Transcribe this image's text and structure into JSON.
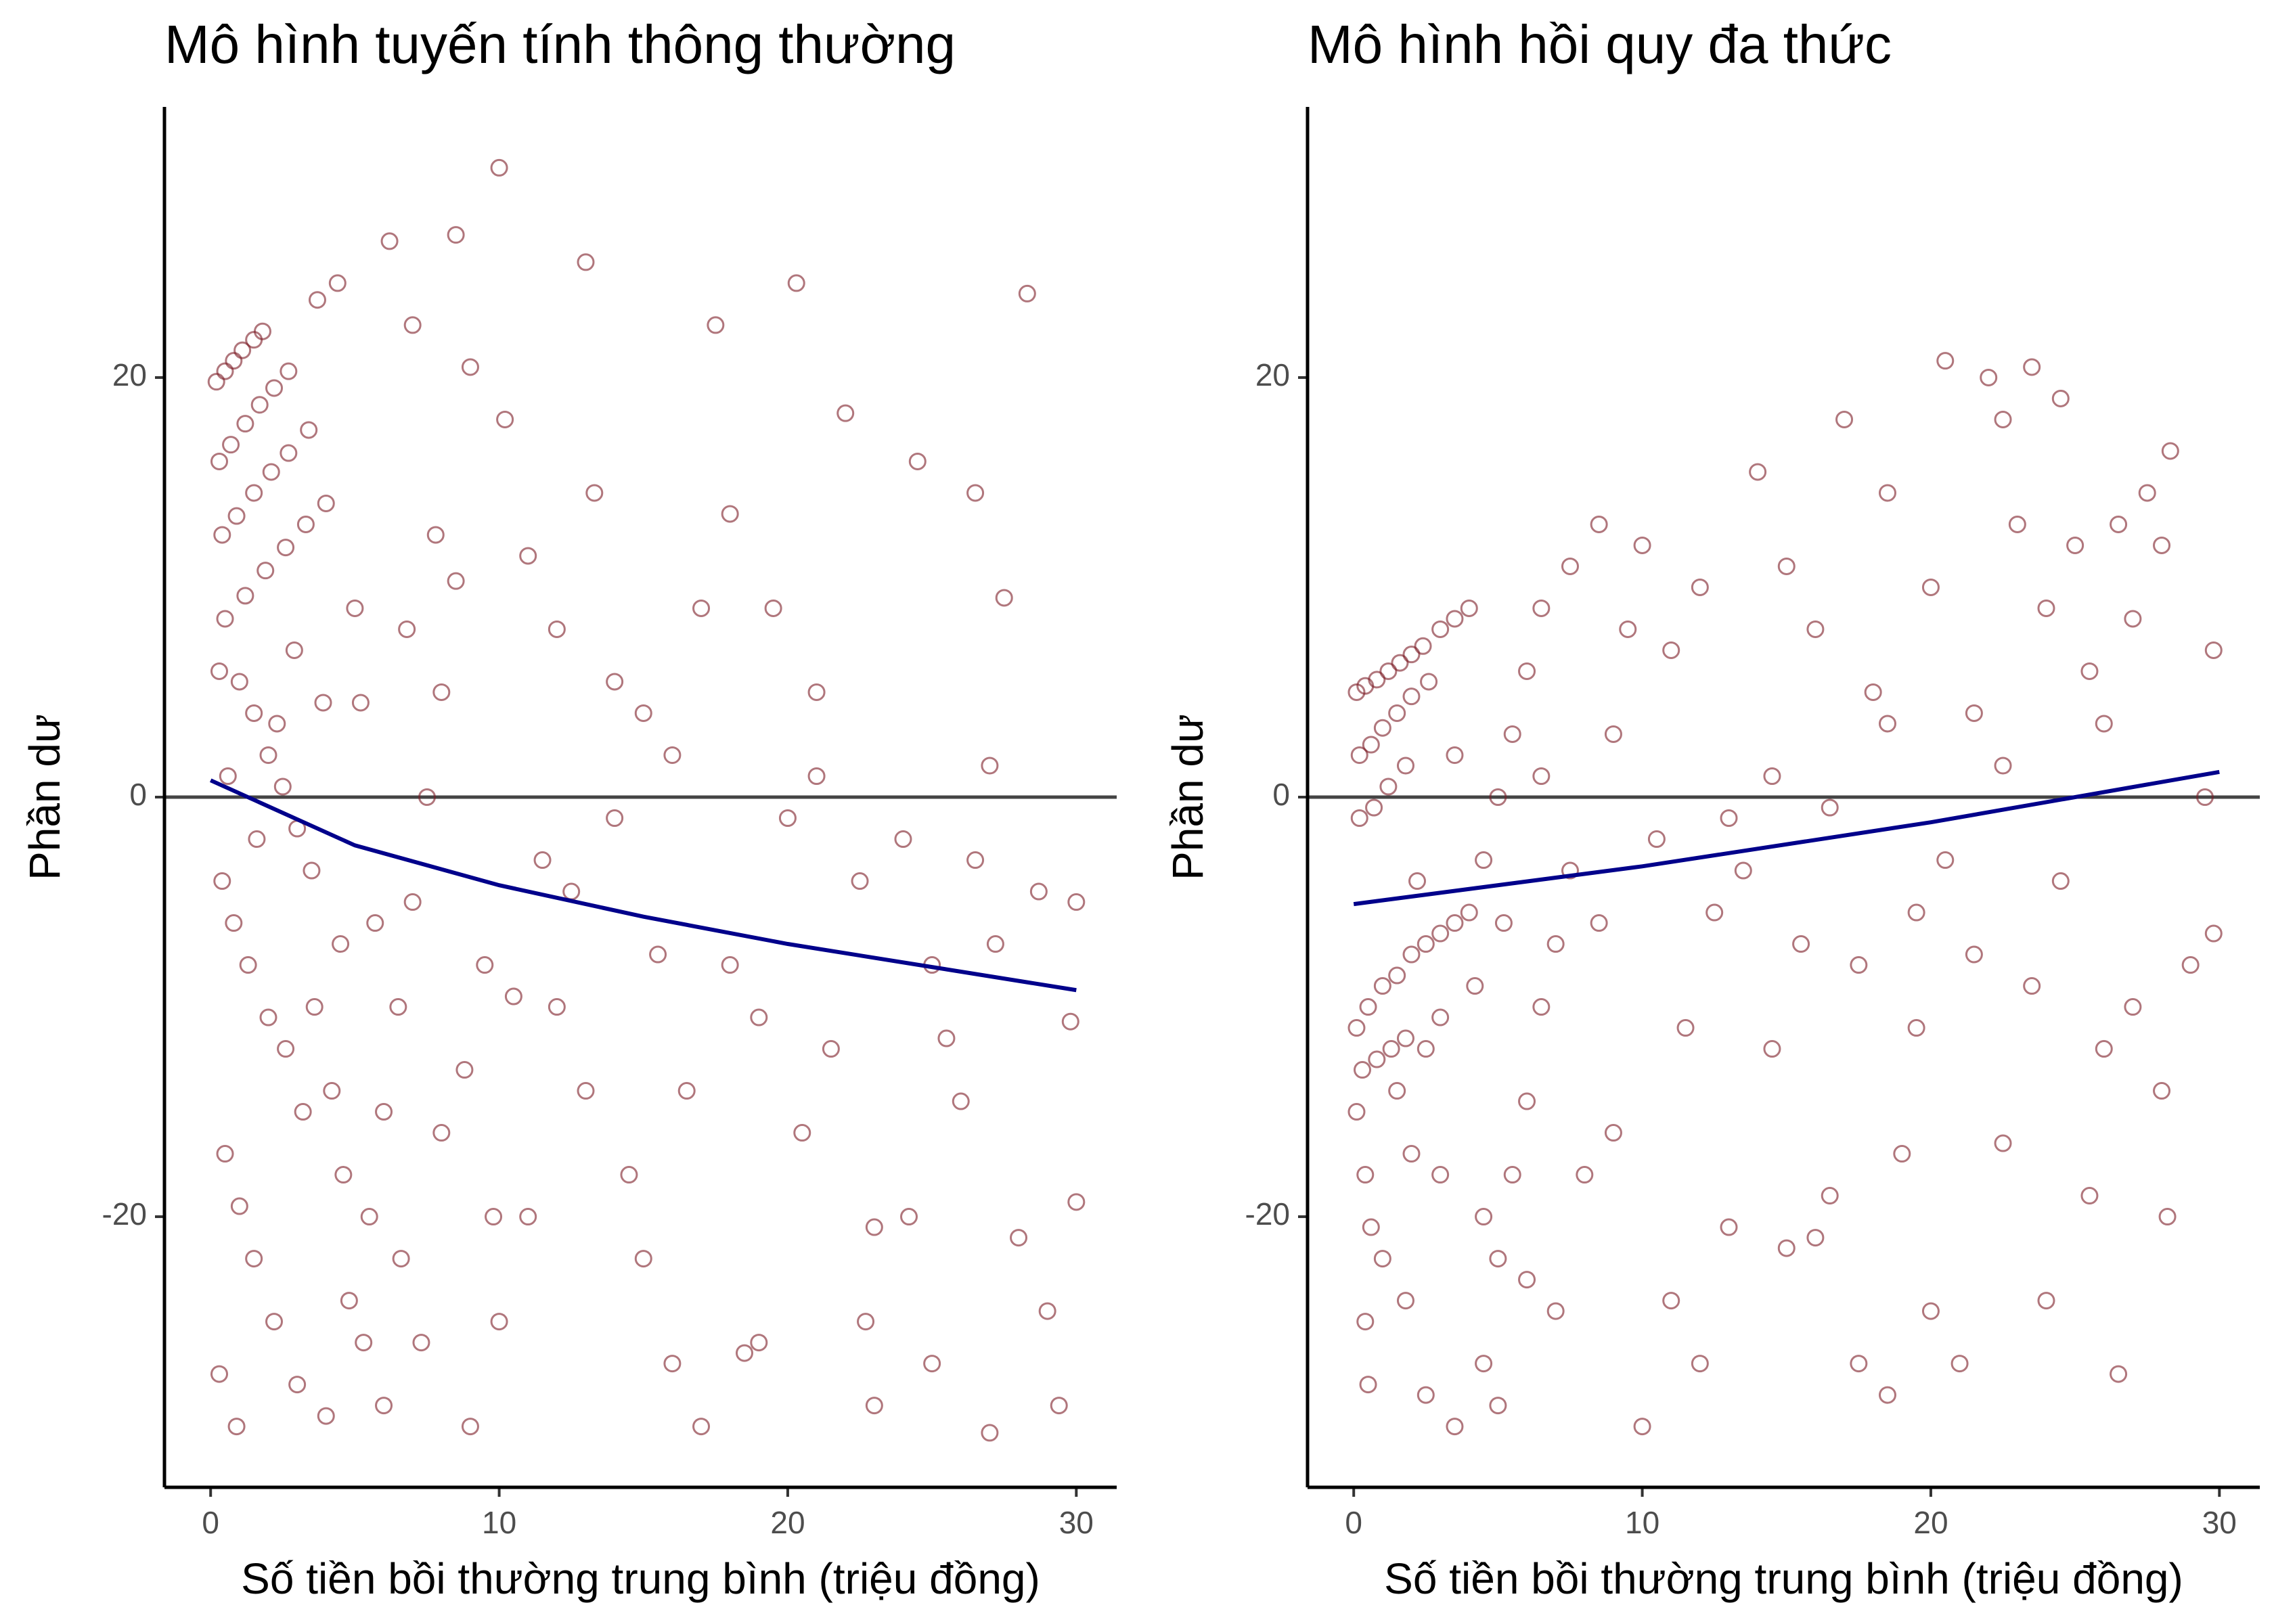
{
  "chart_data": [
    {
      "type": "scatter",
      "title": "Mô hình tuyến tính thông thường",
      "x_label": "Số tiền bồi thường trung bình (triệu đồng)",
      "y_label": "Phần dư",
      "xlim": [
        -1.6,
        31.4
      ],
      "ylim": [
        -32.9,
        32.9
      ],
      "xticks": [
        0,
        10,
        20,
        30
      ],
      "yticks": [
        -20,
        0,
        20
      ],
      "hline": 0,
      "color": "#7b1a25",
      "x": [
        0.2,
        0.5,
        0.8,
        1.1,
        1.5,
        1.8,
        0.3,
        0.7,
        1.2,
        1.7,
        2.2,
        2.7,
        0.4,
        0.9,
        1.5,
        2.1,
        2.7,
        3.4,
        0.5,
        1.2,
        1.9,
        2.6,
        3.3,
        4,
        4.4,
        3.7,
        0.3,
        1,
        1.5,
        2,
        2.5,
        3,
        0.4,
        0.8,
        1.3,
        2,
        2.6,
        3.2,
        0.5,
        1,
        1.5,
        2.2,
        3,
        4,
        0.3,
        0.9,
        4.8,
        5.5,
        6,
        6.5,
        7,
        7.5,
        8,
        6.2,
        7,
        8.5,
        10,
        9,
        10.2,
        11,
        12,
        13,
        13.3,
        14,
        11.5,
        12,
        13,
        14.5,
        15,
        16,
        17,
        9,
        10,
        11,
        8,
        9.5,
        15.5,
        16,
        17,
        17.5,
        18,
        18.5,
        19,
        20,
        20.3,
        21,
        22,
        22.5,
        23,
        24,
        24.5,
        25,
        26,
        26.5,
        27,
        27.2,
        28,
        28.3,
        28.7,
        29.4,
        29.8,
        30,
        30,
        27,
        25,
        21.5,
        19,
        23,
        6,
        3.5,
        4.5,
        5.2,
        5.7,
        6.8,
        7.8,
        8.5,
        5,
        3.9,
        2.3,
        1.6,
        0.6,
        2.9,
        3.6,
        4.2,
        4.6,
        5.3,
        6.6,
        7.3,
        8.8,
        9.8,
        10.5,
        12.5,
        14,
        15,
        16.5,
        18,
        19.5,
        20.5,
        21,
        22.7,
        24.2,
        25.5,
        26.5,
        27.5,
        29
      ],
      "values": [
        19.8,
        20.3,
        20.8,
        21.3,
        21.8,
        22.2,
        16,
        16.8,
        17.8,
        18.7,
        19.5,
        20.3,
        12.5,
        13.4,
        14.5,
        15.5,
        16.4,
        17.5,
        8.5,
        9.6,
        10.8,
        11.9,
        13,
        14,
        24.5,
        23.7,
        6,
        5.5,
        4,
        2,
        0.5,
        -1.5,
        -4,
        -6,
        -8,
        -10.5,
        -12,
        -15,
        -17,
        -19.5,
        -22,
        -25,
        -28,
        -29.5,
        -27.5,
        -30,
        -24,
        -20,
        -15,
        -10,
        -5,
        0,
        5,
        26.5,
        22.5,
        26.8,
        30,
        20.5,
        18,
        11.5,
        8,
        25.5,
        14.5,
        5.5,
        -3,
        -10,
        -14,
        -18,
        -22,
        -27,
        -30,
        -30,
        -25,
        -20,
        -16,
        -8,
        -7.5,
        2,
        9,
        22.5,
        -8,
        -26.5,
        -10.5,
        -1,
        24.5,
        5,
        18.3,
        -4,
        -20.5,
        -2,
        16,
        -8,
        -14.5,
        14.5,
        1.5,
        -7,
        -21,
        24,
        -4.5,
        -29,
        -10.7,
        -19.3,
        -5,
        -30.3,
        -27,
        -12,
        -26,
        -29,
        -29,
        -3.5,
        -7,
        4.5,
        -6,
        8,
        12.5,
        10.3,
        9,
        4.5,
        3.5,
        -2,
        1,
        7,
        -10,
        -14,
        -18,
        -26,
        -22,
        -26,
        -13,
        -20,
        -9.5,
        -4.5,
        -1,
        4,
        -14,
        13.5,
        9,
        -16,
        1,
        -25,
        -20,
        -11.5,
        -3,
        9.5,
        -24.5
      ],
      "trend": {
        "color": "#00008b",
        "x": [
          0,
          5,
          10,
          15,
          20,
          25,
          30
        ],
        "values": [
          0.8,
          -2.3,
          -4.2,
          -5.7,
          -7,
          -8.1,
          -9.2
        ]
      }
    },
    {
      "type": "scatter",
      "title": "Mô hình hồi quy đa thức",
      "x_label": "Số tiền bồi thường trung bình (triệu đồng)",
      "y_label": "Phần dư",
      "xlim": [
        -1.6,
        31.4
      ],
      "ylim": [
        -32.9,
        32.9
      ],
      "xticks": [
        0,
        10,
        20,
        30
      ],
      "yticks": [
        -20,
        0,
        20
      ],
      "hline": 0,
      "color": "#7b1a25",
      "x": [
        0.1,
        0.4,
        0.8,
        1.2,
        1.6,
        2,
        2.4,
        0.2,
        0.6,
        1,
        1.5,
        2,
        2.6,
        0.2,
        0.7,
        1.2,
        1.8,
        3,
        3.5,
        4,
        0.1,
        0.5,
        1,
        1.5,
        2,
        2.5,
        3,
        3.5,
        4,
        0.3,
        0.8,
        1.3,
        1.8,
        2.5,
        3,
        0.1,
        0.4,
        0.6,
        0.4,
        0.5,
        1,
        1.8,
        2.5,
        3.5,
        4.5,
        5,
        5.5,
        6,
        6.5,
        7,
        4.5,
        5,
        5.5,
        6,
        6.5,
        7.5,
        8.5,
        9,
        10,
        11,
        12,
        13,
        14,
        15,
        16,
        17,
        18,
        18.5,
        19,
        20,
        20.5,
        21.5,
        22,
        22.5,
        23,
        23.5,
        24,
        24.5,
        25,
        26,
        26.5,
        27,
        27.5,
        28,
        28.3,
        29,
        29.5,
        29.8,
        29.8,
        28.2,
        26.5,
        25.5,
        24,
        22.5,
        21,
        20,
        18.5,
        17.5,
        16,
        15,
        14.5,
        13,
        12,
        11,
        10,
        9,
        8,
        7,
        6,
        5,
        4.5,
        3,
        2,
        1.5,
        8.5,
        10.5,
        11.5,
        12.5,
        13.5,
        14.5,
        15.5,
        16.5,
        17.5,
        18.5,
        19.5,
        20.5,
        21.5,
        22.5,
        23.5,
        24.5,
        25.5,
        26,
        27,
        28,
        19.5,
        16.5,
        9.5,
        7.5,
        6.5,
        3.5,
        2.2,
        4.2,
        5.2
      ],
      "values": [
        5,
        5.3,
        5.6,
        6,
        6.4,
        6.8,
        7.2,
        2,
        2.5,
        3.3,
        4,
        4.8,
        5.5,
        -1,
        -0.5,
        0.5,
        1.5,
        8,
        8.5,
        9,
        -11,
        -10,
        -9,
        -8.5,
        -7.5,
        -7,
        -6.5,
        -6,
        -5.5,
        -13,
        -12.5,
        -12,
        -11.5,
        -12,
        -10.5,
        -15,
        -18,
        -20.5,
        -25,
        -28,
        -22,
        -24,
        -28.5,
        -30,
        -27,
        -22,
        -18,
        -14.5,
        -10,
        -7,
        -3,
        0,
        3,
        6,
        9,
        11,
        13,
        3,
        12,
        7,
        10,
        -1,
        15.5,
        11,
        8,
        18,
        5,
        14.5,
        -17,
        10,
        20.8,
        4,
        20,
        18,
        13,
        20.5,
        9,
        19,
        12,
        3.5,
        13,
        8.5,
        14.5,
        12,
        16.5,
        -8,
        0,
        7,
        -6.5,
        -20,
        -27.5,
        -19,
        -24,
        -16.5,
        -27,
        -24.5,
        -28.5,
        -27,
        -21,
        -21.5,
        -12,
        -20.5,
        -27,
        -24,
        -30,
        -16,
        -18,
        -24.5,
        -23,
        -29,
        -20,
        -18,
        -17,
        -14,
        -6,
        -2,
        -11,
        -5.5,
        -3.5,
        1,
        -7,
        -0.5,
        -8,
        3.5,
        -11,
        -3,
        -7.5,
        1.5,
        -9,
        -4,
        6,
        -12,
        -10,
        -14,
        -5.5,
        -19,
        8,
        -3.5,
        1,
        2,
        -4,
        -9,
        -6
      ],
      "trend": {
        "color": "#00008b",
        "x": [
          0,
          10,
          20,
          30
        ],
        "values": [
          -5.1,
          -3.3,
          -1.2,
          1.2
        ]
      }
    }
  ]
}
